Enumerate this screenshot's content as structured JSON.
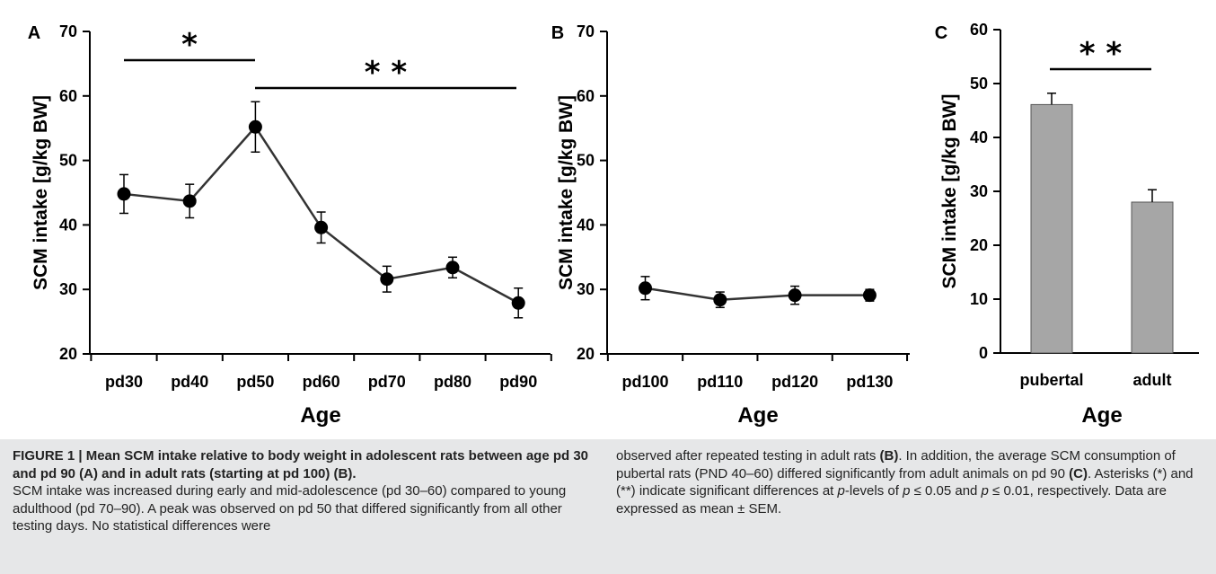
{
  "chart_data": [
    {
      "panel": "A",
      "type": "line",
      "categories": [
        "pd30",
        "pd40",
        "pd50",
        "pd60",
        "pd70",
        "pd80",
        "pd90"
      ],
      "values": [
        44.8,
        43.7,
        55.2,
        39.6,
        31.6,
        33.4,
        27.9
      ],
      "errors": [
        3.0,
        2.6,
        3.9,
        2.4,
        2.0,
        1.6,
        2.3
      ],
      "ylabel": "SCM intake [g/kg BW]",
      "xlabel": "Age",
      "ylim": [
        20,
        70
      ],
      "yticks": [
        "20",
        "30",
        "40",
        "50",
        "60",
        "70"
      ],
      "grid": false,
      "significance": [
        {
          "from": "pd30",
          "to": "pd50",
          "label": "*"
        },
        {
          "from": "pd50",
          "to": "pd90",
          "label": "* *"
        }
      ]
    },
    {
      "panel": "B",
      "type": "line",
      "categories": [
        "pd100",
        "pd110",
        "pd120",
        "pd130"
      ],
      "values": [
        30.2,
        28.4,
        29.1,
        29.1
      ],
      "errors": [
        1.8,
        1.2,
        1.4,
        0.9
      ],
      "ylabel": "SCM intake [g/kg BW]",
      "xlabel": "Age",
      "ylim": [
        20,
        70
      ],
      "yticks": [
        "20",
        "30",
        "40",
        "50",
        "60",
        "70"
      ],
      "grid": false
    },
    {
      "panel": "C",
      "type": "bar",
      "categories": [
        "pubertal",
        "adult"
      ],
      "values": [
        46.1,
        28.0
      ],
      "errors": [
        2.1,
        2.3
      ],
      "ylabel": "SCM intake [g/kg BW]",
      "xlabel": "Age",
      "ylim": [
        0,
        60
      ],
      "yticks": [
        "0",
        "10",
        "20",
        "30",
        "40",
        "50",
        "60"
      ],
      "grid": false,
      "bar_color": "#a6a6a6",
      "significance": [
        {
          "from": "pubertal",
          "to": "adult",
          "label": "* *"
        }
      ]
    }
  ],
  "caption": {
    "figure_label": "FIGURE 1 | Mean SCM intake relative to body weight in adolescent rats between age pd 30 and pd 90 (A) and in adult rats (starting at pd 100) (B).",
    "left_body": "SCM intake was increased during early and mid-adolescence (pd 30–60) compared to young adulthood (pd 70–90). A peak was observed on pd 50 that differed significantly from all other testing days. No statistical differences were",
    "right_1": "observed after repeated testing in adult rats ",
    "right_b": "(B)",
    "right_2": ". In addition, the average SCM consumption of pubertal rats (PND 40–60) differed significantly from adult animals on pd 90 ",
    "right_c": "(C)",
    "right_3": ". Asterisks (*) and (**) indicate significant differences at ",
    "right_p1": "p",
    "right_4": "-levels of ",
    "right_p2": "p",
    "right_5": " ≤ 0.05 and ",
    "right_p3": "p",
    "right_6": " ≤ 0.01, respectively. Data are expressed as mean ± SEM."
  },
  "colors": {
    "line": "#333333",
    "marker": "#000000",
    "bar": "#a6a6a6",
    "caption_bg": "#e6e7e8"
  }
}
